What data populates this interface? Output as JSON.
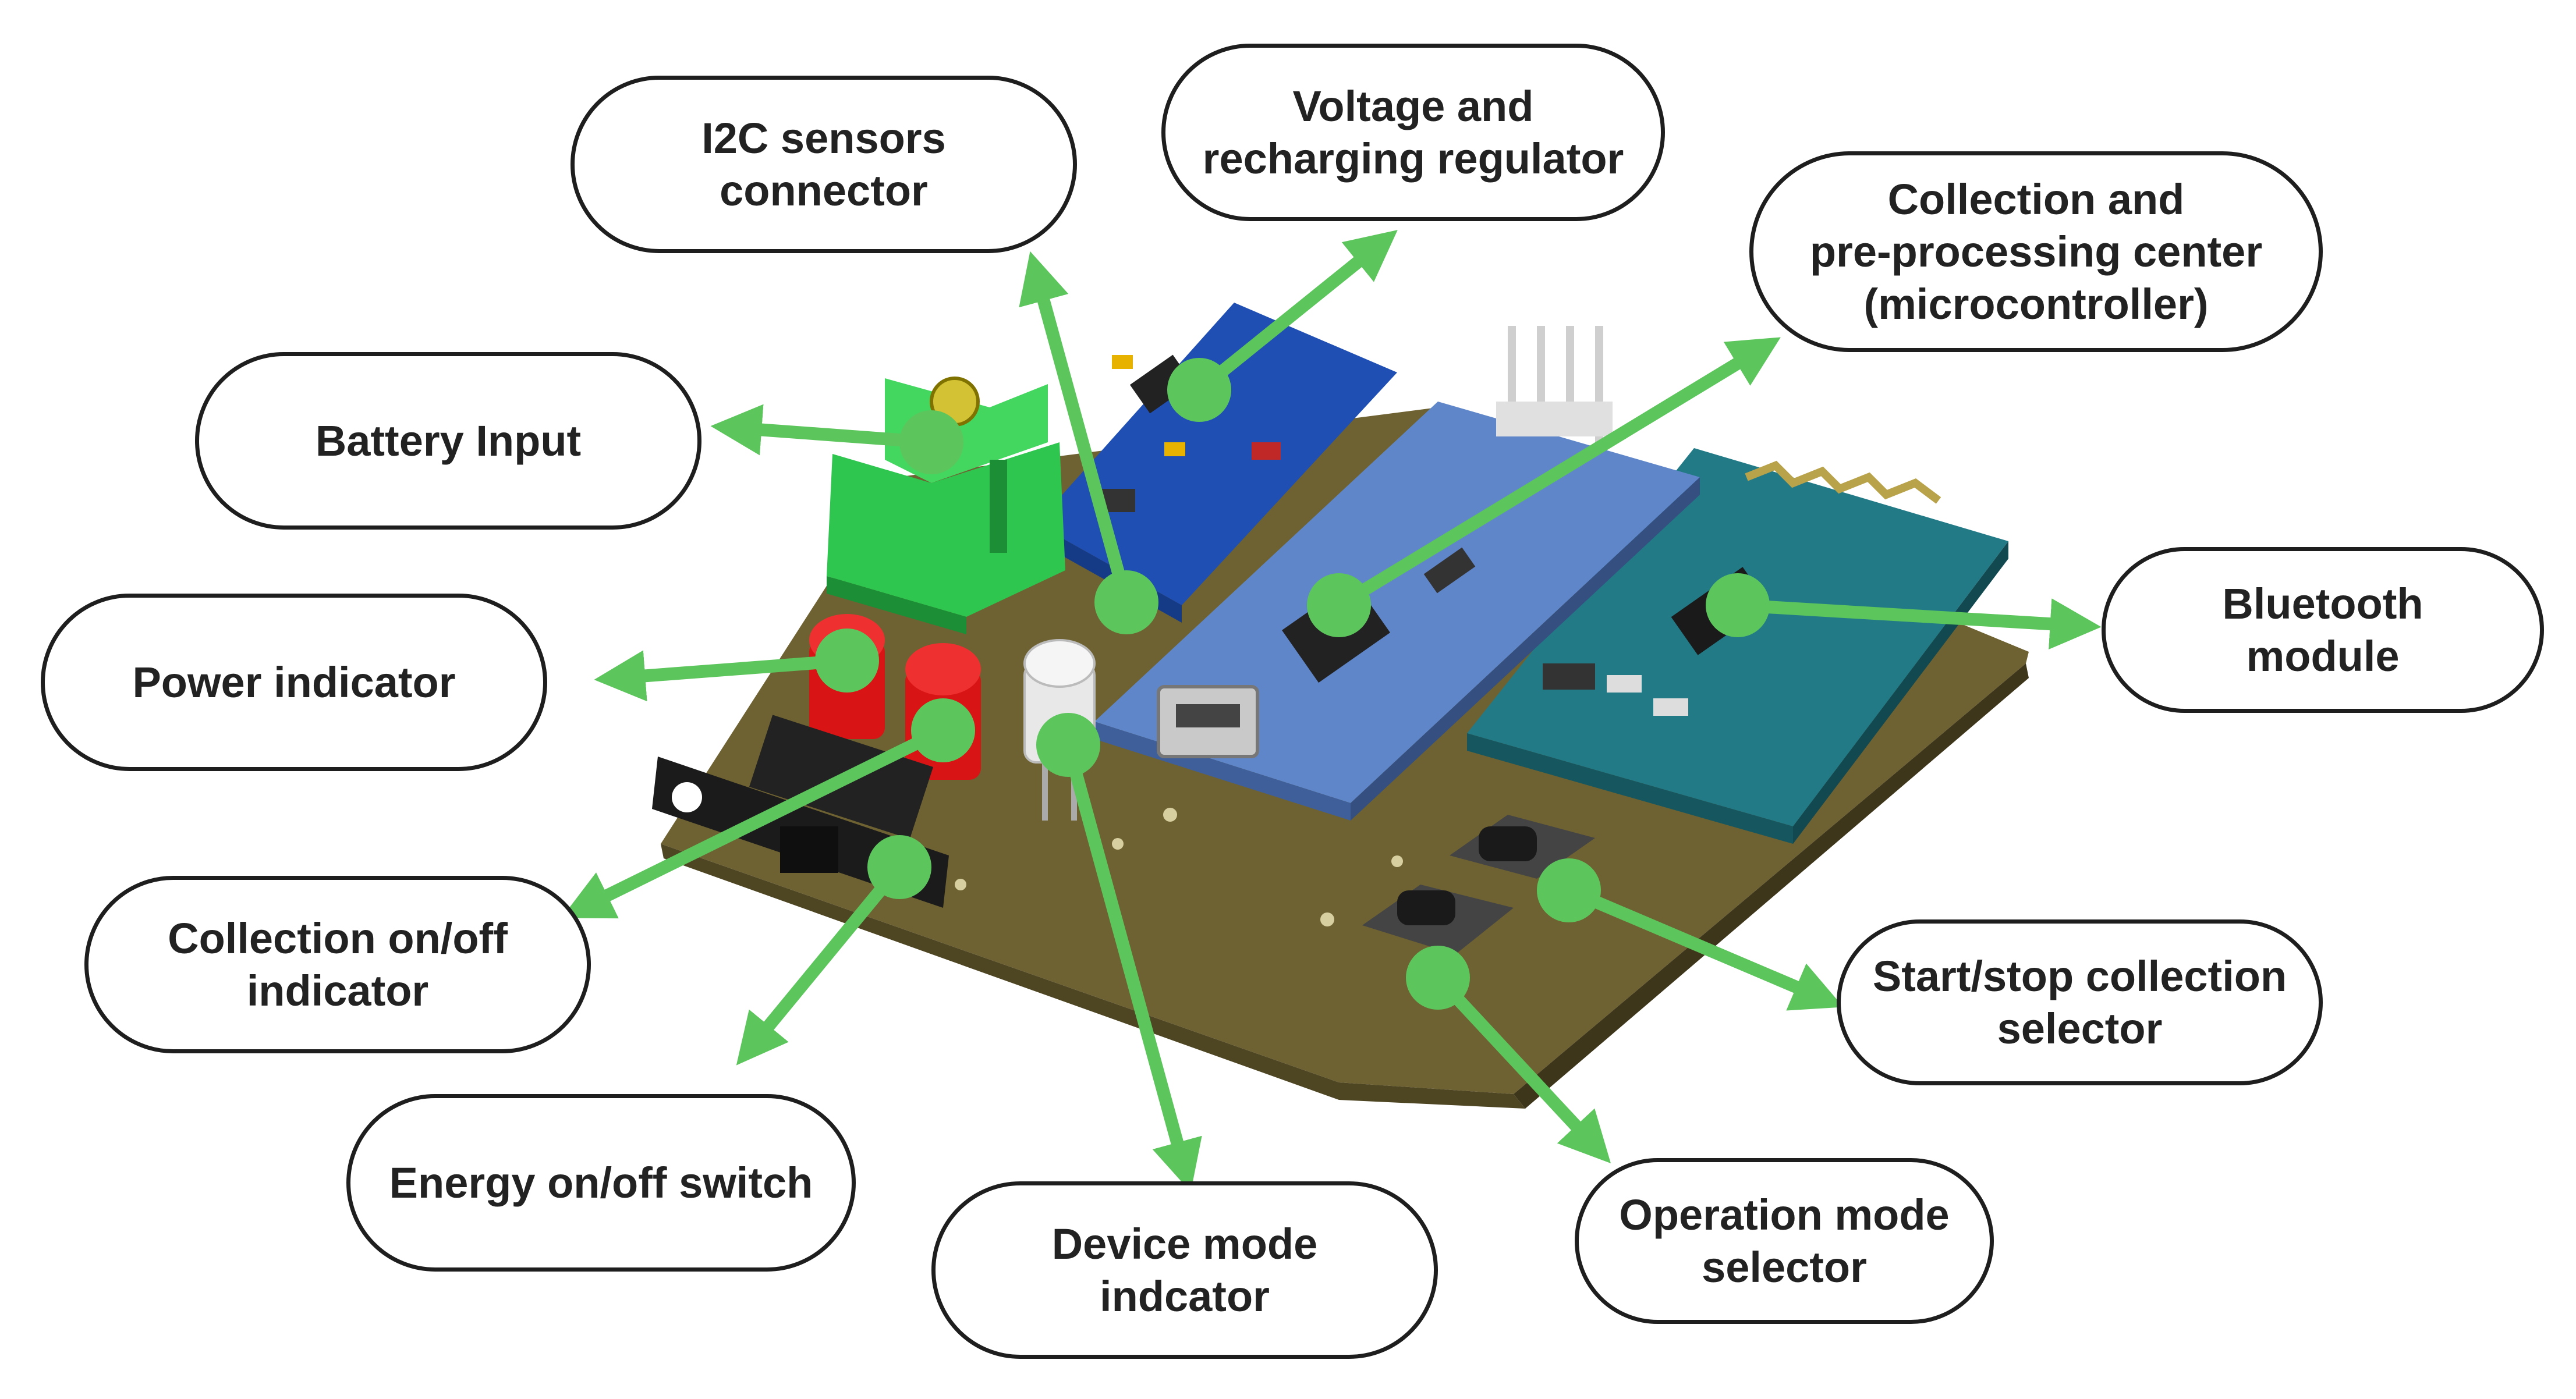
{
  "labels": {
    "i2c": "I2C sensors\nconnector",
    "voltage": "Voltage and\nrecharging regulator",
    "collection_center": "Collection and\npre-processing center\n(microcontroller)",
    "battery": "Battery Input",
    "power_indicator": "Power indicator",
    "bluetooth": "Bluetooth\nmodule",
    "collection_indicator": "Collection on/off\nindicator",
    "start_stop": "Start/stop collection\nselector",
    "energy_switch": "Energy on/off switch",
    "device_mode": "Device mode\nindcator",
    "operation_mode": "Operation mode\nselector"
  },
  "colors": {
    "arrow": "#5cc55c",
    "callout_border": "#1e1e1e",
    "pcb_board": "#6e6232",
    "nano_board": "#5f86c9",
    "bluetooth_board": "#227a86",
    "regulator_board": "#1f4fb3",
    "terminal_block": "#2fc64f",
    "led_red": "#d81414",
    "led_white": "#e8e8e8"
  }
}
